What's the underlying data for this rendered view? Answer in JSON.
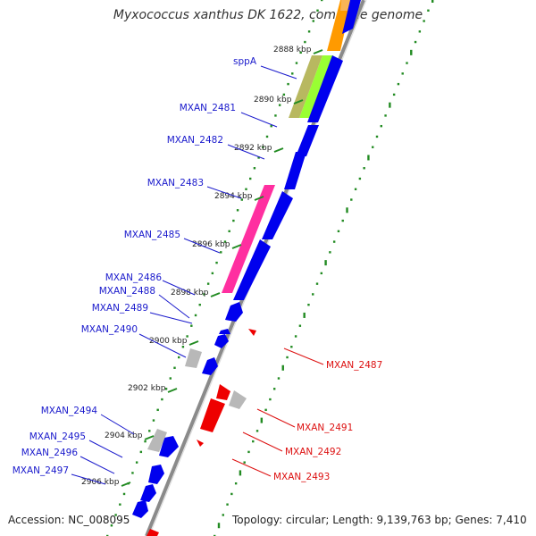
{
  "title": "Myxococcus xanthus DK 1622, complete genome",
  "accession_label": "Accession: NC_008095",
  "summary_label": "Topology: circular; Length: 9,139,763 bp; Genes: 7,410",
  "colors": {
    "forward_gene": "#0000ee",
    "reverse_gene": "#ee0000",
    "label_forward": "#1a1acc",
    "label_reverse": "#dd1111",
    "backbone": "#8a8a8a",
    "gc_dots": "#228b22",
    "pseudo_gene": "#b8b8b8",
    "cog_orange": "#ff9a00",
    "cog_lightgreen": "#99ff33",
    "cog_olive": "#b8b860",
    "cog_pink": "#ff2fa0"
  },
  "kbp_ticks": [
    "2888 kbp",
    "2890 kbp",
    "2892 kbp",
    "2894 kbp",
    "2896 kbp",
    "2898 kbp",
    "2900 kbp",
    "2902 kbp",
    "2904 kbp",
    "2906 kbp"
  ],
  "forward_gene_labels": [
    "sppA",
    "MXAN_2481",
    "MXAN_2482",
    "MXAN_2483",
    "MXAN_2485",
    "MXAN_2486",
    "MXAN_2488",
    "MXAN_2489",
    "MXAN_2490",
    "MXAN_2494",
    "MXAN_2495",
    "MXAN_2496",
    "MXAN_2497"
  ],
  "reverse_gene_labels": [
    "MXAN_2487",
    "MXAN_2491",
    "MXAN_2492",
    "MXAN_2493"
  ]
}
